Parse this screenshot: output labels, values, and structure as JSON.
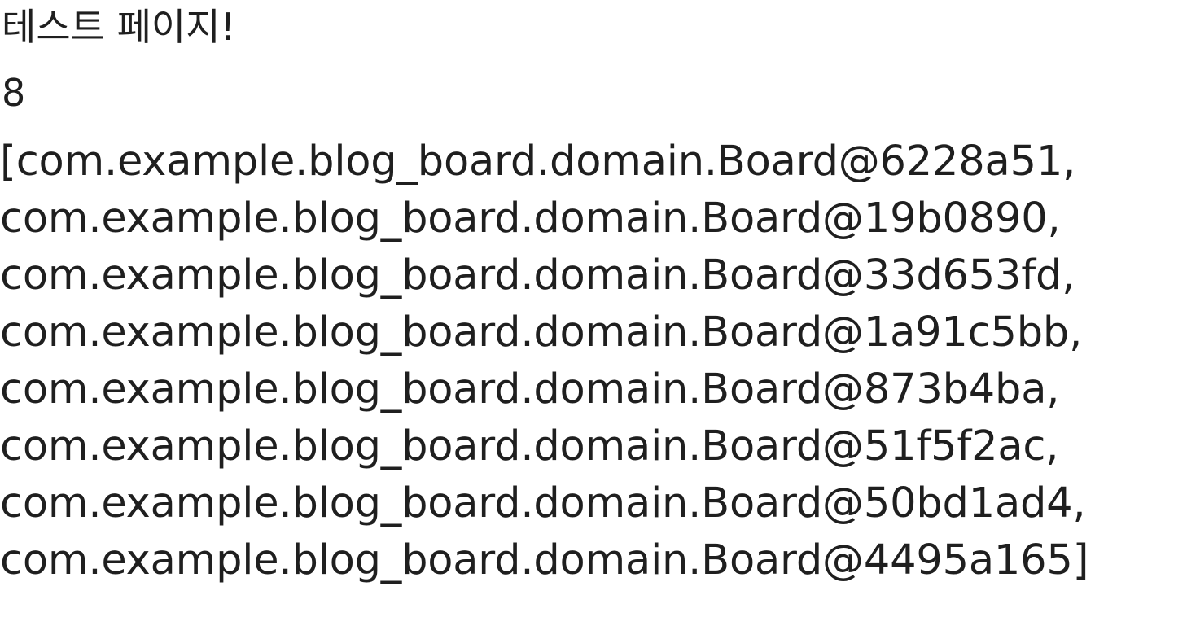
{
  "page": {
    "heading": "테스트 페이지!",
    "count": "8",
    "lines": [
      "[com.example.blog_board.domain.Board@6228a51,",
      "com.example.blog_board.domain.Board@19b0890,",
      "com.example.blog_board.domain.Board@33d653fd,",
      "com.example.blog_board.domain.Board@1a91c5bb,",
      "com.example.blog_board.domain.Board@873b4ba,",
      "com.example.blog_board.domain.Board@51f5f2ac,",
      "com.example.blog_board.domain.Board@50bd1ad4,",
      "com.example.blog_board.domain.Board@4495a165]"
    ]
  }
}
